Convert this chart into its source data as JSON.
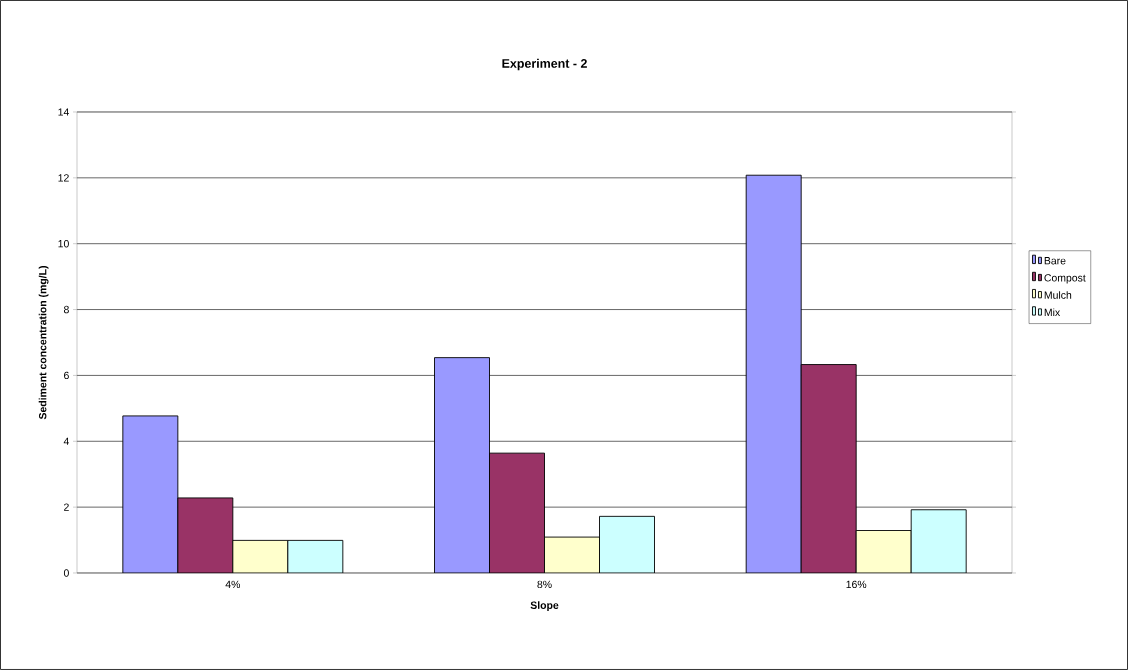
{
  "chart_data": {
    "type": "bar",
    "title": "Experiment - 2",
    "xlabel": "Slope",
    "ylabel": "Sediment concentration (mg/L)",
    "categories": [
      "4%",
      "8%",
      "16%"
    ],
    "series": [
      {
        "name": "Bare",
        "color": "#9999ff",
        "values": [
          4.77,
          6.54,
          12.08
        ]
      },
      {
        "name": "Compost",
        "color": "#993366",
        "values": [
          2.28,
          3.64,
          6.33
        ]
      },
      {
        "name": "Mulch",
        "color": "#ffffcc",
        "values": [
          0.99,
          1.09,
          1.29
        ]
      },
      {
        "name": "Mix",
        "color": "#ccffff",
        "values": [
          0.99,
          1.72,
          1.92
        ]
      }
    ],
    "ylim": [
      0,
      14
    ],
    "yticks": [
      0,
      2,
      4,
      6,
      8,
      10,
      12,
      14
    ],
    "grid": "y",
    "legend": "right"
  }
}
